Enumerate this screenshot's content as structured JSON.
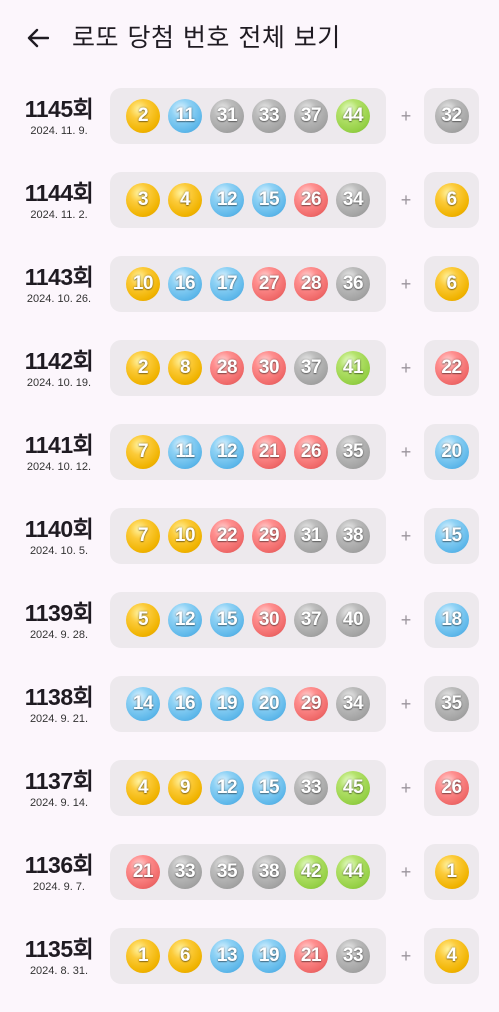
{
  "header": {
    "title": "로또 당첨 번호 전체 보기"
  },
  "rows": [
    {
      "round": "1145회",
      "date": "2024. 11. 9.",
      "numbers": [
        2,
        11,
        31,
        33,
        37,
        44
      ],
      "bonus": 32
    },
    {
      "round": "1144회",
      "date": "2024. 11. 2.",
      "numbers": [
        3,
        4,
        12,
        15,
        26,
        34
      ],
      "bonus": 6
    },
    {
      "round": "1143회",
      "date": "2024. 10. 26.",
      "numbers": [
        10,
        16,
        17,
        27,
        28,
        36
      ],
      "bonus": 6
    },
    {
      "round": "1142회",
      "date": "2024. 10. 19.",
      "numbers": [
        2,
        8,
        28,
        30,
        37,
        41
      ],
      "bonus": 22
    },
    {
      "round": "1141회",
      "date": "2024. 10. 12.",
      "numbers": [
        7,
        11,
        12,
        21,
        26,
        35
      ],
      "bonus": 20
    },
    {
      "round": "1140회",
      "date": "2024. 10. 5.",
      "numbers": [
        7,
        10,
        22,
        29,
        31,
        38
      ],
      "bonus": 15
    },
    {
      "round": "1139회",
      "date": "2024. 9. 28.",
      "numbers": [
        5,
        12,
        15,
        30,
        37,
        40
      ],
      "bonus": 18
    },
    {
      "round": "1138회",
      "date": "2024. 9. 21.",
      "numbers": [
        14,
        16,
        19,
        20,
        29,
        34
      ],
      "bonus": 35
    },
    {
      "round": "1137회",
      "date": "2024. 9. 14.",
      "numbers": [
        4,
        9,
        12,
        15,
        33,
        45
      ],
      "bonus": 26
    },
    {
      "round": "1136회",
      "date": "2024. 9. 7.",
      "numbers": [
        21,
        33,
        35,
        38,
        42,
        44
      ],
      "bonus": 1
    },
    {
      "round": "1135회",
      "date": "2024. 8. 31.",
      "numbers": [
        1,
        6,
        13,
        19,
        21,
        33
      ],
      "bonus": 4
    }
  ],
  "plus_sign": "+",
  "ball_colors": {
    "1-10": "#fbc400",
    "11-20": "#69c8f2",
    "21-30": "#ff7272",
    "31-40": "#aaaaaa",
    "41-45": "#b0d840"
  }
}
